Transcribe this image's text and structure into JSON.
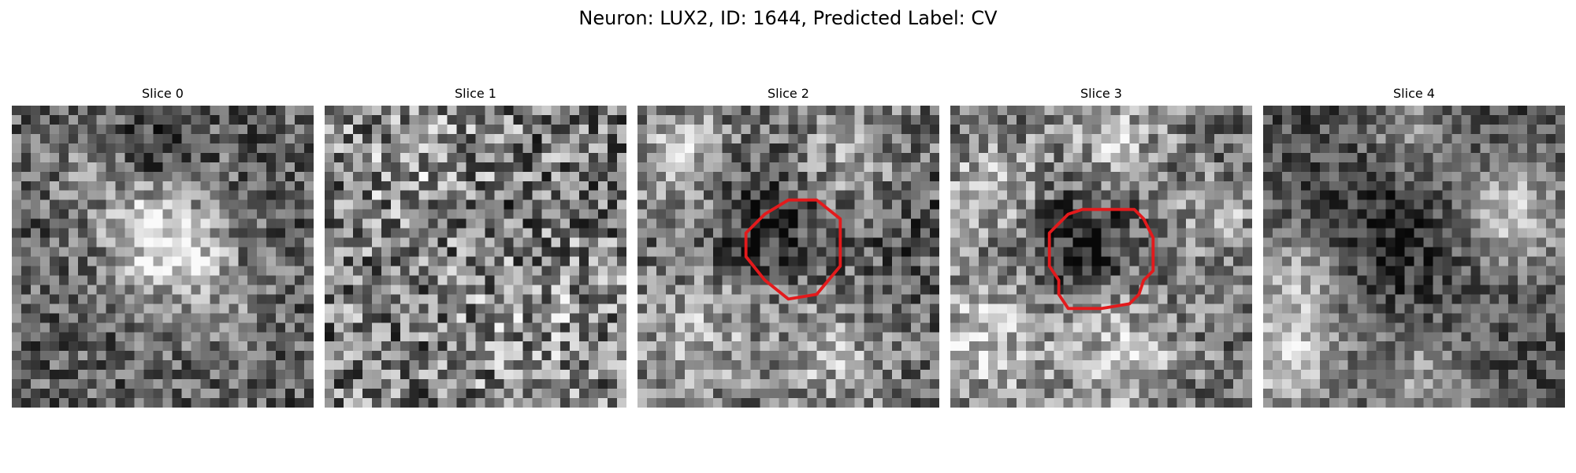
{
  "figure": {
    "title": "Neuron: LUX2, ID: 1644, Predicted Label: CV"
  },
  "panels": [
    {
      "title": "Slice 0",
      "seed": 11,
      "contour": false
    },
    {
      "title": "Slice 1",
      "seed": 23,
      "contour": false
    },
    {
      "title": "Slice 2",
      "seed": 37,
      "contour": true
    },
    {
      "title": "Slice 3",
      "seed": 51,
      "contour": true
    },
    {
      "title": "Slice 4",
      "seed": 67,
      "contour": false
    }
  ],
  "colors": {
    "contour": "#e31a1c"
  },
  "colormap": "gray"
}
